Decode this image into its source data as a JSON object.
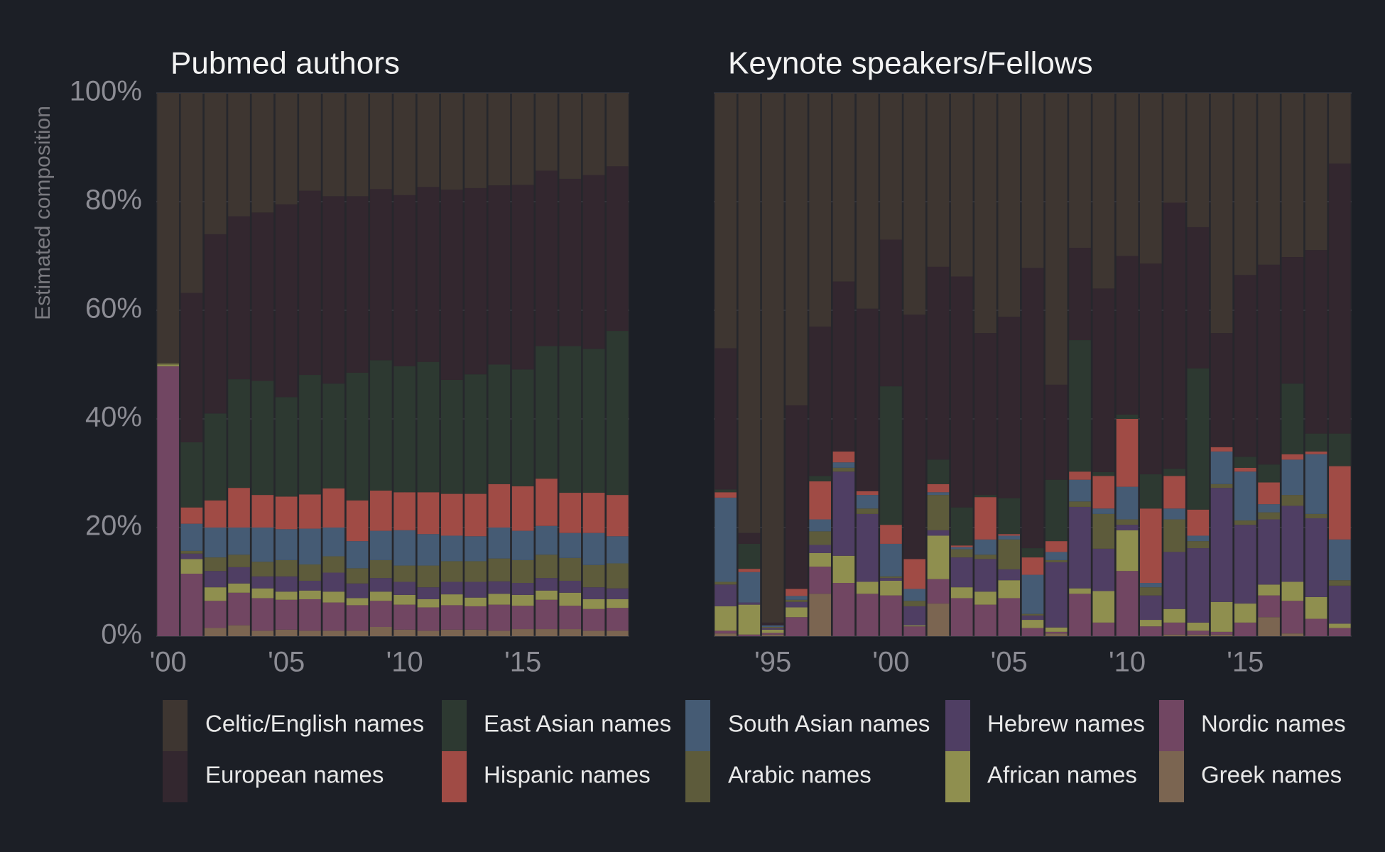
{
  "chart_data": [
    {
      "type": "bar",
      "stacked": true,
      "title": "Pubmed authors",
      "y_label": "Estimated composition",
      "x": [
        2000,
        2001,
        2002,
        2003,
        2004,
        2005,
        2006,
        2007,
        2008,
        2009,
        2010,
        2011,
        2012,
        2013,
        2014,
        2015,
        2016,
        2017,
        2018,
        2019
      ],
      "xlim": [
        1999.5,
        2019.5
      ],
      "xticks": [
        {
          "value": 2000,
          "label": "'00"
        },
        {
          "value": 2005,
          "label": "'05"
        },
        {
          "value": 2010,
          "label": "'10"
        },
        {
          "value": 2015,
          "label": "'15"
        }
      ],
      "ylim": [
        0,
        100
      ],
      "yticks": [
        {
          "value": 0,
          "label": "0%"
        },
        {
          "value": 20,
          "label": "20%"
        },
        {
          "value": 40,
          "label": "40%"
        },
        {
          "value": 60,
          "label": "60%"
        },
        {
          "value": 80,
          "label": "80%"
        },
        {
          "value": 100,
          "label": "100%"
        }
      ],
      "grid": true,
      "series": [
        {
          "name": "Celtic/English names",
          "color": "#3e3631",
          "values": [
            49.7,
            36.8,
            26,
            22.7,
            22,
            20.5,
            18,
            19,
            19,
            17.7,
            18.8,
            17.3,
            17.8,
            17.5,
            17,
            16.9,
            14.3,
            15.8,
            15.1,
            13.5
          ]
        },
        {
          "name": "European names",
          "color": "#33272f",
          "values": [
            0,
            27.5,
            33,
            30,
            31,
            35.5,
            33.9,
            34.5,
            32.5,
            31.5,
            31.5,
            32.2,
            35,
            34.3,
            33,
            34,
            32.3,
            30.8,
            32,
            30.3
          ]
        },
        {
          "name": "East Asian names",
          "color": "#2d3931",
          "values": [
            0,
            12,
            16,
            20,
            21,
            18.3,
            22,
            19.3,
            23.5,
            24,
            23.2,
            24,
            21,
            22,
            22,
            21.5,
            24.4,
            27,
            26.5,
            30.2
          ]
        },
        {
          "name": "Hispanic names",
          "color": "#a04b45",
          "values": [
            0,
            3,
            5,
            7.3,
            6,
            6,
            6.3,
            7.2,
            7.5,
            7.4,
            7,
            7.7,
            7.7,
            7.8,
            8,
            8.2,
            8.7,
            7.4,
            7.4,
            7.6
          ]
        },
        {
          "name": "South Asian names",
          "color": "#455b74",
          "values": [
            0,
            5,
            5.5,
            5,
            6.3,
            5.7,
            6.6,
            5.3,
            5,
            5.4,
            6.5,
            5.8,
            4.7,
            4.6,
            5.7,
            5.4,
            5.3,
            4.6,
            5.9,
            5
          ]
        },
        {
          "name": "Arabic names",
          "color": "#5d5b3b",
          "values": [
            0.3,
            0.5,
            2.5,
            2.3,
            2.7,
            3,
            3,
            3,
            2.8,
            3.3,
            3,
            4,
            3.8,
            3.8,
            4.2,
            4.2,
            4.3,
            4.2,
            4.1,
            4.6
          ]
        },
        {
          "name": "Hebrew names",
          "color": "#4f3e63",
          "values": [
            0,
            1,
            3,
            3,
            2.2,
            2.8,
            1.8,
            3.5,
            2.7,
            2.5,
            2.4,
            2.2,
            2.3,
            2.9,
            2.3,
            2.2,
            2.3,
            2.2,
            2.2,
            2
          ]
        },
        {
          "name": "African names",
          "color": "#8f8f4f",
          "values": [
            0.3,
            2.7,
            2.5,
            1.7,
            1.8,
            1.5,
            1.6,
            2,
            1.3,
            1.7,
            1.8,
            1.5,
            2,
            1.6,
            2,
            2,
            1.7,
            2.4,
            1.8,
            1.6
          ]
        },
        {
          "name": "Nordic names",
          "color": "#714662",
          "values": [
            49.7,
            11.5,
            5,
            6,
            6,
            5.5,
            5.8,
            5.2,
            4.7,
            4.8,
            4.6,
            4.3,
            4.5,
            4.3,
            4.8,
            4.3,
            5.4,
            4.3,
            4,
            4.2
          ]
        },
        {
          "name": "Greek names",
          "color": "#7b6551",
          "values": [
            0,
            0,
            1.5,
            2,
            1,
            1.2,
            1,
            1,
            1,
            1.7,
            1.2,
            1,
            1.2,
            1.2,
            1,
            1.3,
            1.3,
            1.3,
            1,
            1
          ]
        }
      ]
    },
    {
      "type": "bar",
      "stacked": true,
      "title": "Keynote speakers/Fellows",
      "x": [
        1993,
        1994,
        1995,
        1996,
        1997,
        1998,
        1999,
        2000,
        2001,
        2002,
        2003,
        2004,
        2005,
        2006,
        2007,
        2008,
        2009,
        2010,
        2011,
        2012,
        2013,
        2014,
        2015,
        2016,
        2017,
        2018,
        2019
      ],
      "xlim": [
        1992.5,
        2019.5
      ],
      "xticks": [
        {
          "value": 1995,
          "label": "'95"
        },
        {
          "value": 2000,
          "label": "'00"
        },
        {
          "value": 2005,
          "label": "'05"
        },
        {
          "value": 2010,
          "label": "'10"
        },
        {
          "value": 2015,
          "label": "'15"
        }
      ],
      "ylim": [
        0,
        100
      ],
      "yticks": [
        0,
        20,
        40,
        60,
        80,
        100
      ],
      "grid": true,
      "series": [
        {
          "name": "Celtic/English names",
          "color": "#3e3631",
          "values": [
            47,
            81,
            97.5,
            57.5,
            43,
            34.7,
            39.7,
            27,
            40.8,
            32,
            33.8,
            44.2,
            41.2,
            32.2,
            53.7,
            28.5,
            36,
            30,
            31.4,
            20.2,
            24.7,
            44.2,
            33.5,
            31.6,
            30.2,
            28.9,
            13
          ]
        },
        {
          "name": "European names",
          "color": "#33272f",
          "values": [
            26,
            2,
            0.5,
            33.8,
            27.5,
            31.3,
            33.6,
            27,
            45,
            35.5,
            42.5,
            29.8,
            33.4,
            51.6,
            17.5,
            17,
            33.8,
            29.2,
            38.8,
            49,
            26,
            21,
            33.5,
            36.8,
            23.3,
            33.8,
            49.7
          ]
        },
        {
          "name": "East Asian names",
          "color": "#2d3931",
          "values": [
            0.5,
            4.6,
            0,
            0,
            1,
            0,
            0,
            25.5,
            0,
            4.5,
            7,
            0.4,
            6.6,
            1.7,
            11.3,
            24.2,
            0.7,
            0.8,
            6.3,
            1.3,
            26,
            0,
            2,
            3.3,
            13,
            3.3,
            6
          ]
        },
        {
          "name": "Hispanic names",
          "color": "#a04b45",
          "values": [
            1,
            0.6,
            0,
            1.3,
            7,
            2,
            0.7,
            3.5,
            5.5,
            1.5,
            0.3,
            7.8,
            0.3,
            3.2,
            2,
            1.5,
            6,
            12.5,
            13.7,
            6,
            4.8,
            0.8,
            0.7,
            4,
            1,
            0.5,
            13.5
          ]
        },
        {
          "name": "South Asian names",
          "color": "#455b74",
          "values": [
            15.5,
            5.6,
            0.3,
            0.7,
            2.2,
            1,
            2.5,
            6,
            2.2,
            0.5,
            0.4,
            2.8,
            0.7,
            7.2,
            1.5,
            4,
            1,
            6,
            0.8,
            2,
            1,
            6,
            9,
            1.5,
            6.5,
            11,
            7.5
          ]
        },
        {
          "name": "Arabic names",
          "color": "#5d5b3b",
          "values": [
            0.5,
            0,
            0.2,
            0.4,
            2.5,
            0.7,
            1,
            0.3,
            1,
            6.5,
            1.5,
            0.8,
            5.5,
            0.3,
            0.4,
            1,
            6.4,
            1,
            1.5,
            6,
            1.3,
            0.7,
            0.8,
            1.3,
            2,
            0.8,
            1
          ]
        },
        {
          "name": "Hebrew names",
          "color": "#4f3e63",
          "values": [
            4,
            0.4,
            0.3,
            1,
            1.5,
            15.5,
            12.5,
            0.5,
            3.5,
            1,
            5.5,
            6,
            2,
            0.8,
            12,
            15,
            7.8,
            1,
            4.5,
            10.5,
            13.7,
            21,
            14.5,
            12,
            14,
            14.5,
            7
          ]
        },
        {
          "name": "African names",
          "color": "#8f8f4f",
          "values": [
            4.5,
            5.5,
            0.6,
            1.8,
            2.5,
            5,
            2.2,
            2.7,
            0.2,
            8,
            2,
            2.4,
            3.3,
            1.5,
            0.8,
            1,
            5.8,
            7.5,
            1.2,
            2.5,
            1.5,
            5.5,
            3.5,
            2,
            3.5,
            4,
            0.8
          ]
        },
        {
          "name": "Nordic names",
          "color": "#714662",
          "values": [
            0.5,
            0.3,
            0.3,
            3.5,
            5,
            9.8,
            7.8,
            7.5,
            1.8,
            4.5,
            7,
            5.8,
            7,
            1.5,
            0.3,
            7.8,
            2.5,
            12,
            1.8,
            2.2,
            0.7,
            0.5,
            2.5,
            4,
            6,
            3.2,
            1.5
          ]
        },
        {
          "name": "Greek names",
          "color": "#7b6551",
          "values": [
            0.5,
            0,
            0.3,
            0,
            7.8,
            0,
            0,
            0,
            0,
            6,
            0,
            0,
            0,
            0,
            0.5,
            0,
            0,
            0,
            0,
            0.3,
            0.3,
            0.3,
            0,
            3.5,
            0.5,
            0,
            0
          ]
        }
      ]
    }
  ]
}
